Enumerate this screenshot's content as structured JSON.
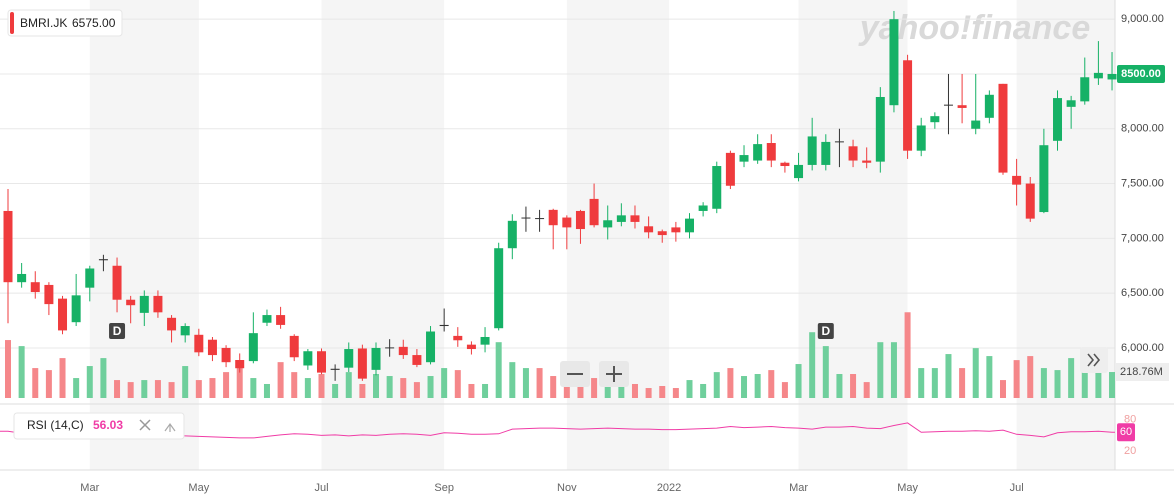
{
  "chart_data": {
    "type": "candlestick",
    "symbol": "BMRI.JK",
    "symbol_value": "6575.00",
    "watermark": "yahoo!finance",
    "dividend_label": "D",
    "up_color": "#16b166",
    "down_color": "#ef3b3d",
    "volume_up_color": "#6fcf9c",
    "volume_down_color": "#f5878a",
    "rsi_color": "#f03ca6",
    "ylim": [
      5525,
      9175
    ],
    "yticks": [
      {
        "value": 6000,
        "label": "6,000.00"
      },
      {
        "value": 6500,
        "label": "6,500.00"
      },
      {
        "value": 7000,
        "label": "7,000.00"
      },
      {
        "value": 7500,
        "label": "7,500.00"
      },
      {
        "value": 8000,
        "label": "8,000.00"
      },
      {
        "value": 8500,
        "label": "8,500.00"
      },
      {
        "value": 9000,
        "label": "9,000.00"
      }
    ],
    "last_price": {
      "value": 8500,
      "label": "8500.00"
    },
    "xticks": [
      {
        "value": 6,
        "label": "Mar"
      },
      {
        "value": 14,
        "label": "May"
      },
      {
        "value": 23,
        "label": "Jul"
      },
      {
        "value": 32,
        "label": "Sep"
      },
      {
        "value": 41,
        "label": "Nov"
      },
      {
        "value": 48.5,
        "label": "2022"
      },
      {
        "value": 58,
        "label": "Mar"
      },
      {
        "value": 66,
        "label": "May"
      },
      {
        "value": 74,
        "label": "Jul"
      }
    ],
    "open": [
      7250,
      6600,
      6600,
      6575,
      6450,
      6235,
      6550,
      6800,
      6750,
      6440,
      6320,
      6475,
      6275,
      6115,
      6120,
      6075,
      6000,
      5890,
      5880,
      6230,
      6300,
      6110,
      5840,
      5970,
      5800,
      5820,
      5995,
      5800,
      6000,
      6010,
      5935,
      5870,
      6200,
      6110,
      6030,
      6030,
      6180,
      6910,
      7185,
      7185,
      7260,
      7190,
      7250,
      7360,
      7100,
      7150,
      7210,
      7110,
      7065,
      7100,
      7055,
      7250,
      7270,
      7780,
      7700,
      7710,
      7870,
      7690,
      7550,
      7670,
      7670,
      7880,
      7840,
      7710,
      7700,
      8215,
      8625,
      7800,
      8060,
      8215,
      8215,
      8000,
      8100,
      8410,
      7570,
      7500,
      7240,
      7890,
      8200,
      8250,
      8460,
      8450
    ],
    "high": [
      7450,
      6775,
      6700,
      6600,
      6475,
      6675,
      6750,
      6850,
      6825,
      6475,
      6525,
      6525,
      6300,
      6225,
      6175,
      6100,
      6025,
      5950,
      6325,
      6350,
      6375,
      6125,
      5990,
      5995,
      5850,
      6050,
      6030,
      6050,
      6080,
      6075,
      5990,
      6200,
      6360,
      6190,
      6060,
      6190,
      6960,
      7220,
      7290,
      7260,
      7270,
      7210,
      7260,
      7500,
      7300,
      7320,
      7300,
      7200,
      7080,
      7150,
      7230,
      7330,
      7700,
      7800,
      7850,
      7950,
      7950,
      7700,
      7780,
      8100,
      7950,
      8000,
      7900,
      7830,
      8380,
      9075,
      8675,
      8100,
      8150,
      8500,
      8500,
      8500,
      8350,
      8410,
      7725,
      7560,
      8000,
      8350,
      8300,
      8650,
      8800,
      8700
    ],
    "low": [
      6225,
      6550,
      6450,
      6300,
      6125,
      6200,
      6425,
      6700,
      6325,
      6225,
      6200,
      6275,
      6050,
      6050,
      5925,
      5880,
      5825,
      5775,
      5860,
      6200,
      6175,
      5880,
      5800,
      5760,
      5700,
      5780,
      5700,
      5750,
      5920,
      5900,
      5825,
      5850,
      6150,
      6010,
      5940,
      5960,
      6160,
      6810,
      7060,
      7060,
      6900,
      6900,
      6950,
      7100,
      6990,
      7110,
      7090,
      7000,
      6960,
      6970,
      7000,
      7200,
      7230,
      7450,
      7650,
      7680,
      7650,
      7600,
      7520,
      7620,
      7620,
      7650,
      7650,
      7640,
      7600,
      8150,
      7725,
      7750,
      8000,
      7950,
      8050,
      7950,
      8050,
      7580,
      7300,
      7150,
      7230,
      7800,
      8000,
      8220,
      8400,
      8350
    ],
    "close": [
      6600,
      6675,
      6510,
      6400,
      6160,
      6480,
      6725,
      6810,
      6440,
      6390,
      6475,
      6325,
      6160,
      6200,
      5960,
      5935,
      5870,
      5815,
      6135,
      6300,
      6210,
      5915,
      5970,
      5775,
      5810,
      5990,
      5720,
      6000,
      6005,
      5935,
      5845,
      6150,
      6210,
      6070,
      5990,
      6100,
      6910,
      7160,
      7190,
      7180,
      7120,
      7100,
      7085,
      7120,
      7165,
      7210,
      7150,
      7055,
      7030,
      7055,
      7180,
      7300,
      7660,
      7480,
      7760,
      7860,
      7710,
      7660,
      7670,
      7930,
      7880,
      7885,
      7710,
      7690,
      8290,
      9000,
      7800,
      8030,
      8115,
      8220,
      8190,
      8075,
      8310,
      7600,
      7490,
      7180,
      7850,
      8280,
      8260,
      8470,
      8510,
      8500
    ],
    "volume_ylim": [
      0,
      800
    ],
    "volume": [
      488,
      437,
      252,
      235,
      336,
      168,
      269,
      336,
      151,
      134,
      151,
      151,
      134,
      269,
      151,
      168,
      218,
      319,
      168,
      118,
      302,
      218,
      168,
      202,
      118,
      218,
      118,
      202,
      185,
      168,
      134,
      185,
      252,
      235,
      118,
      118,
      470,
      302,
      252,
      252,
      185,
      118,
      185,
      168,
      134,
      134,
      118,
      84,
      101,
      84,
      151,
      118,
      218,
      252,
      185,
      202,
      235,
      134,
      286,
      554,
      437,
      202,
      202,
      134,
      470,
      470,
      722,
      252,
      252,
      370,
      252,
      420,
      353,
      151,
      319,
      353,
      252,
      235,
      336,
      252,
      218,
      218.76
    ],
    "last_volume": {
      "value": 218.76,
      "label": "218.76M"
    },
    "rsi_label": "RSI (14,C)",
    "rsi_value_label": "56.03",
    "rsi_badge": "60",
    "rsi_ylim": [
      -17,
      99
    ],
    "rsi_yticks": [
      20,
      80
    ],
    "rsi": [
      58,
      54,
      55,
      53,
      51,
      50,
      53,
      55,
      54,
      52,
      51,
      52,
      50,
      49,
      48,
      47,
      46,
      45,
      45,
      48,
      51,
      53,
      52,
      50,
      51,
      49,
      51,
      50,
      52,
      53,
      52,
      50,
      55,
      54,
      52,
      52,
      53,
      62,
      63,
      64,
      64,
      63,
      62,
      63,
      64,
      63,
      62,
      62,
      61,
      61,
      62,
      63,
      64,
      67,
      65,
      66,
      67,
      65,
      64,
      62,
      66,
      66,
      67,
      64,
      63,
      69,
      74,
      56,
      57,
      58,
      58,
      59,
      58,
      60,
      52,
      50,
      47,
      55,
      57,
      57,
      58,
      56.03
    ]
  }
}
